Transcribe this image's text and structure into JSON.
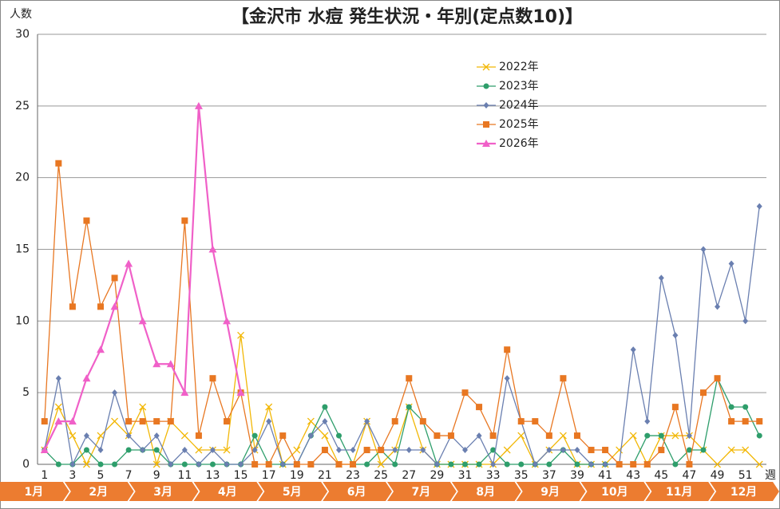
{
  "chart_data": {
    "type": "line",
    "title": "【金沢市 水痘 発生状況・年別(定点数10)】",
    "y_label": "人数",
    "x_label": "週",
    "categories": [
      "1",
      null,
      "3",
      null,
      "5",
      null,
      "7",
      null,
      "9",
      null,
      "11",
      null,
      "13",
      null,
      "15",
      null,
      "17",
      null,
      "19",
      null,
      "21",
      null,
      "23",
      null,
      "25",
      null,
      "27",
      null,
      "29",
      null,
      "31",
      null,
      "33",
      null,
      "35",
      null,
      "37",
      null,
      "39",
      null,
      "41",
      null,
      "43",
      null,
      "45",
      null,
      "47",
      null,
      "49",
      null,
      "51",
      null
    ],
    "months": [
      "1月",
      "2月",
      "3月",
      "4月",
      "5月",
      "6月",
      "7月",
      "8月",
      "9月",
      "10月",
      "11月",
      "12月"
    ],
    "ylim": [
      0,
      30
    ],
    "yticks": [
      0,
      5,
      10,
      15,
      20,
      25,
      30
    ],
    "grid": true,
    "legend_position": "upper-center",
    "series": [
      {
        "name": "2022年",
        "color": "#f2b705",
        "marker": "x",
        "values": [
          1,
          4,
          2,
          0,
          2,
          3,
          2,
          4,
          0,
          3,
          2,
          1,
          1,
          1,
          9,
          1,
          4,
          0,
          1,
          3,
          2,
          0,
          0,
          3,
          0,
          1,
          4,
          1,
          0,
          0,
          0,
          0,
          0,
          1,
          2,
          0,
          1,
          2,
          0,
          0,
          0,
          1,
          2,
          0,
          2,
          2,
          2,
          1,
          0,
          1,
          1,
          0
        ]
      },
      {
        "name": "2023年",
        "color": "#2e9e6b",
        "marker": "circle",
        "values": [
          1,
          0,
          0,
          1,
          0,
          0,
          1,
          1,
          1,
          0,
          0,
          0,
          0,
          0,
          0,
          2,
          0,
          0,
          0,
          2,
          4,
          2,
          0,
          0,
          1,
          0,
          4,
          3,
          0,
          0,
          0,
          0,
          1,
          0,
          0,
          0,
          0,
          1,
          0,
          0,
          0,
          0,
          0,
          2,
          2,
          0,
          1,
          1,
          6,
          4,
          4,
          2
        ]
      },
      {
        "name": "2024年",
        "color": "#6a7fb0",
        "marker": "diamond",
        "values": [
          1,
          6,
          0,
          2,
          1,
          5,
          2,
          1,
          2,
          0,
          1,
          0,
          1,
          0,
          0,
          1,
          3,
          0,
          0,
          2,
          3,
          1,
          1,
          3,
          1,
          1,
          1,
          1,
          0,
          2,
          1,
          2,
          0,
          6,
          3,
          0,
          1,
          1,
          1,
          0,
          0,
          0,
          8,
          3,
          13,
          9,
          2,
          15,
          11,
          14,
          10,
          18
        ]
      },
      {
        "name": "2025年",
        "color": "#e87722",
        "marker": "square",
        "values": [
          3,
          21,
          11,
          17,
          11,
          13,
          3,
          3,
          3,
          3,
          17,
          2,
          6,
          3,
          5,
          0,
          0,
          2,
          0,
          0,
          1,
          0,
          0,
          1,
          1,
          3,
          6,
          3,
          2,
          2,
          5,
          4,
          2,
          8,
          3,
          3,
          2,
          6,
          2,
          1,
          1,
          0,
          0,
          0,
          1,
          4,
          0,
          5,
          6,
          3,
          3,
          3
        ]
      },
      {
        "name": "2026年",
        "color": "#f060c8",
        "marker": "triangle",
        "values": [
          1,
          3,
          3,
          6,
          8,
          11,
          14,
          10,
          7,
          7,
          5,
          25,
          15,
          10,
          5,
          null,
          null,
          null,
          null,
          null,
          null,
          null,
          null,
          null,
          null,
          null,
          null,
          null,
          null,
          null,
          null,
          null,
          null,
          null,
          null,
          null,
          null,
          null,
          null,
          null,
          null,
          null,
          null,
          null,
          null,
          null,
          null,
          null,
          null,
          null,
          null,
          null
        ]
      }
    ]
  }
}
